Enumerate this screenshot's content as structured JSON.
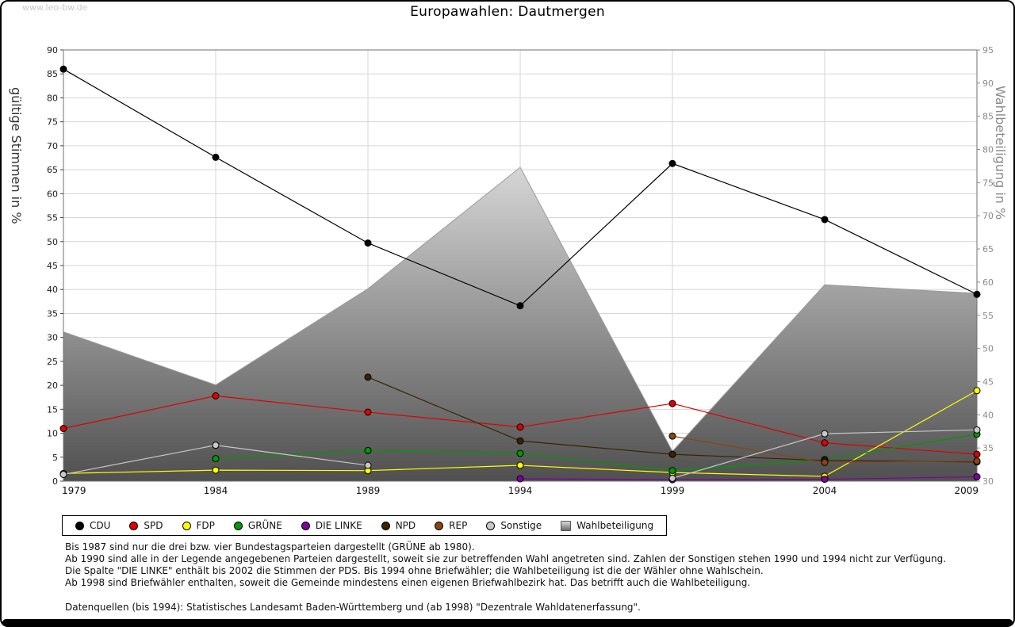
{
  "watermark": "www.leo-bw.de",
  "title": "Europawahlen: Dautmergen",
  "chart_data": {
    "type": "line",
    "title": "Europawahlen: Dautmergen",
    "categories": [
      "1979",
      "1984",
      "1989",
      "1994",
      "1999",
      "2004",
      "2009"
    ],
    "left_axis": {
      "label": "gültige Stimmen in %",
      "min": 0,
      "max": 90,
      "step": 5
    },
    "right_axis": {
      "label": "Wahlbeteiligung in %",
      "min": 30,
      "max": 95,
      "step": 5
    },
    "grid": true,
    "legend_position": "bottom",
    "series": [
      {
        "name": "CDU",
        "color": "#000000",
        "values": [
          86.0,
          67.6,
          49.7,
          36.6,
          66.3,
          54.6,
          39.0
        ]
      },
      {
        "name": "SPD",
        "color": "#e00000",
        "values": [
          11.0,
          17.8,
          14.4,
          11.3,
          16.2,
          8.0,
          5.6
        ]
      },
      {
        "name": "FDP",
        "color": "#ffff00",
        "values": [
          1.6,
          2.3,
          2.2,
          3.3,
          1.8,
          1.0,
          18.9
        ]
      },
      {
        "name": "GRÜNE",
        "color": "#009900",
        "values": [
          null,
          4.7,
          6.4,
          5.8,
          2.2,
          4.5,
          9.8
        ]
      },
      {
        "name": "DIE LINKE",
        "color": "#8000a0",
        "values": [
          null,
          null,
          null,
          0.5,
          0.3,
          0.4,
          0.9
        ]
      },
      {
        "name": "NPD",
        "color": "#3b2300",
        "values": [
          null,
          null,
          21.7,
          8.4,
          5.6,
          4.3,
          4.0
        ]
      },
      {
        "name": "REP",
        "color": "#8b4513",
        "values": [
          null,
          null,
          null,
          null,
          9.4,
          3.9,
          4.2
        ]
      },
      {
        "name": "Sonstige",
        "color": "#c8c8c8",
        "values": [
          1.4,
          7.5,
          3.3,
          null,
          0.6,
          9.9,
          10.7
        ]
      }
    ],
    "area_series": {
      "name": "Wahlbeteiligung",
      "axis": "right",
      "color_top": "#dadada",
      "color_bottom": "#505050",
      "values": [
        52.5,
        44.5,
        59.0,
        77.3,
        34.5,
        59.6,
        58.3
      ]
    }
  },
  "notes": [
    "Bis 1987 sind nur die drei bzw. vier Bundestagsparteien dargestellt (GRÜNE ab 1980).",
    "Ab 1990 sind alle in der Legende angegebenen Parteien dargestellt, soweit sie zur betreffenden Wahl angetreten sind. Zahlen der Sonstigen stehen 1990 und 1994 nicht zur Verfügung.",
    "Die Spalte \"DIE LINKE\" enthält bis 2002 die Stimmen der PDS. Bis 1994 ohne Briefwähler; die Wahlbeteiligung ist die der Wähler ohne Wahlschein.",
    "Ab 1998 sind Briefwähler enthalten, soweit die Gemeinde mindestens einen eigenen Briefwahlbezirk hat. Das betrifft auch die Wahlbeteiligung."
  ],
  "source": "Datenquellen (bis 1994): Statistisches Landesamt Baden-Württemberg und (ab 1998) \"Dezentrale Wahldatenerfassung\"."
}
